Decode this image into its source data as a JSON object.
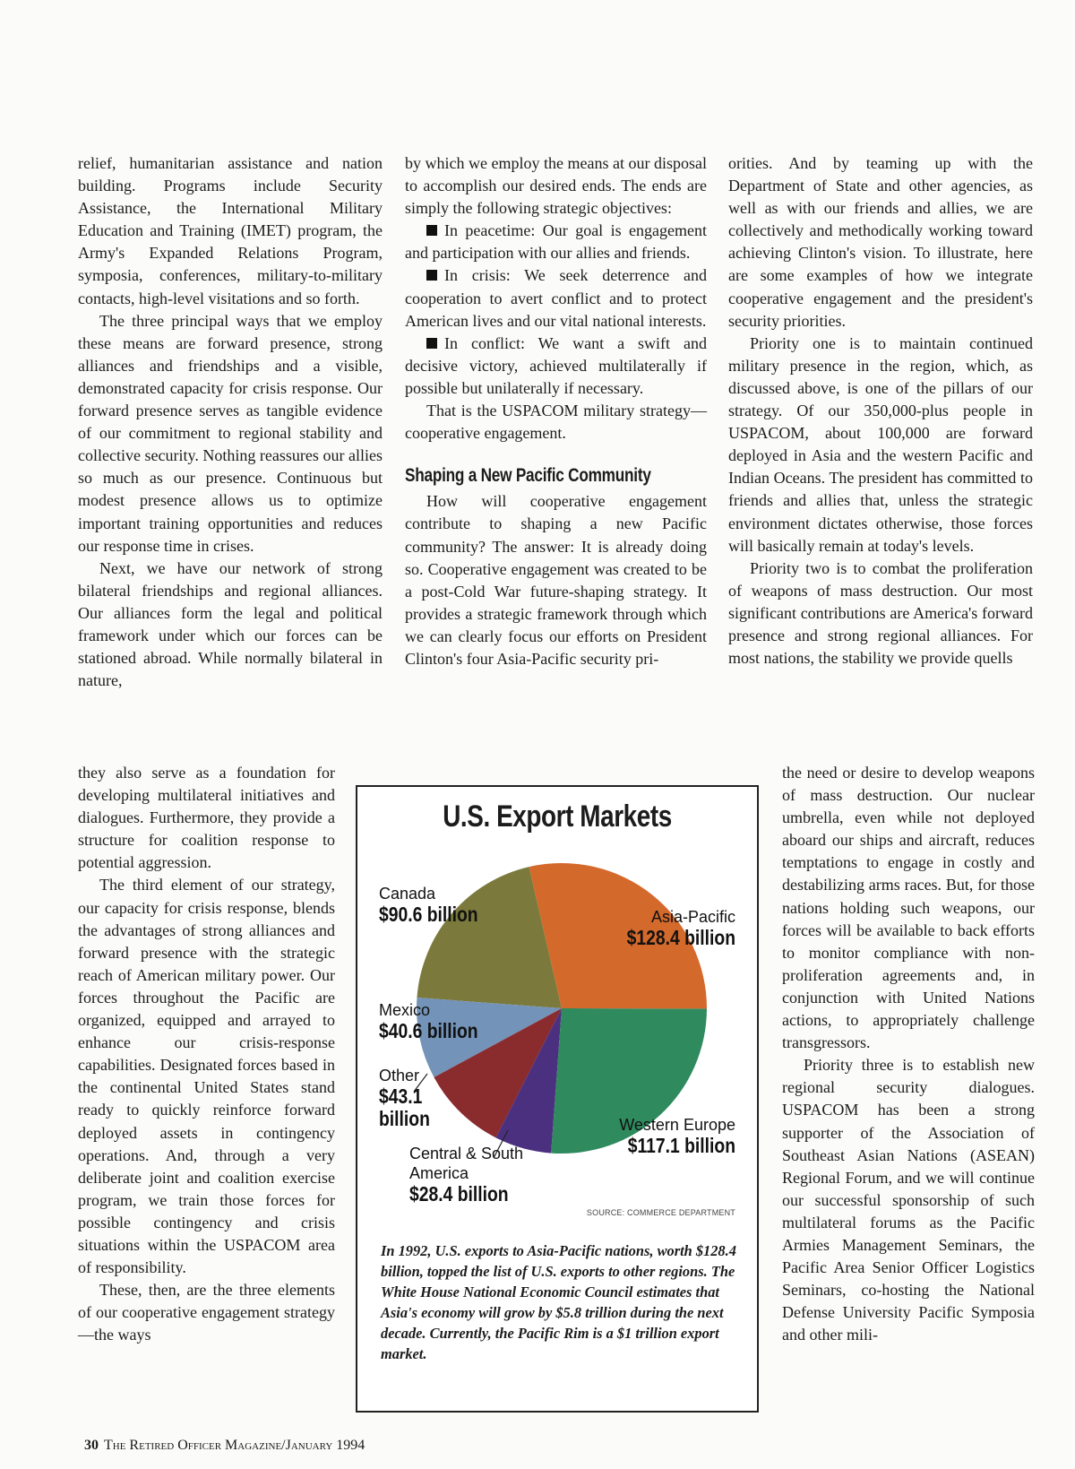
{
  "column_1": {
    "top": [
      "relief, humanitarian assistance and nation building. Programs include Security Assistance, the International Military Education and Training (IMET) program, the Army's Expanded Relations Program, symposia, conferences, military-to-military contacts, high-level visitations and so forth.",
      "The three principal ways that we employ these means are forward presence, strong alliances and friendships and a visible, demonstrated capacity for crisis response. Our forward presence serves as tangible evidence of our commitment to regional stability and collective security. Nothing reassures our allies so much as our presence. Continuous but modest presence allows us to optimize important training opportunities and reduces our response time in crises.",
      "Next, we have our network of strong bilateral friendships and regional alliances. Our alliances form the legal and political framework under which our forces can be stationed abroad. While normally bilateral in nature,"
    ],
    "wrap": [
      "they also serve as a foundation for developing multilateral initiatives and dialogues. Furthermore, they provide a structure for coalition response to potential aggression.",
      "The third element of our strategy, our capacity for crisis response, blends the advantages of strong alliances and forward presence with the strategic reach of American military power. Our forces throughout the Pacific are organized, equipped and arrayed to enhance our crisis-response capabilities. Designated forces based in the continental United States stand ready to quickly reinforce forward deployed assets in contingency operations. And, through a very deliberate joint and coalition exercise program, we train those forces for possible contingency and crisis situations within the USPACOM area of responsibility.",
      "These, then, are the three elements of our cooperative engagement strategy—the ways"
    ]
  },
  "column_2": {
    "intro": "by which we employ the means at our disposal to accomplish our desired ends. The ends are simply the following strategic objectives:",
    "bullets": [
      "In peacetime: Our goal is engagement and participation with our allies and friends.",
      "In crisis: We seek deterrence and cooperation to avert conflict and to protect American lives and our vital national interests.",
      "In conflict: We want a swift and decisive victory, achieved multilaterally if possible but unilaterally if necessary."
    ],
    "closing": "That is the USPACOM military strategy—cooperative engagement.",
    "heading": "Shaping a New Pacific Community",
    "body": "How will cooperative engagement contribute to shaping a new Pacific community? The answer: It is already doing so. Cooperative engagement was created to be a post-Cold War future-shaping strategy. It provides a strategic framework through which we can clearly focus our efforts on President Clinton's four Asia-Pacific security pri-"
  },
  "column_3": {
    "top": [
      "orities. And by teaming up with the Department of State and other agencies, as well as with our friends and allies, we are collectively and methodically working toward achieving Clinton's vision. To illustrate, here are some examples of how we integrate cooperative engagement and the president's security priorities.",
      "Priority one is to maintain continued military presence in the region, which, as discussed above, is one of the pillars of our strategy. Of our 350,000-plus people in USPACOM, about 100,000 are forward deployed in Asia and the western Pacific and Indian Oceans. The president has committed to friends and allies that, unless the strategic environment dictates otherwise, those forces will basically remain at today's levels.",
      "Priority two is to combat the proliferation of weapons of mass destruction. Our most significant contributions are America's forward presence and strong regional alliances. For most nations, the stability we provide quells"
    ],
    "wrap": [
      "the need or desire to develop weapons of mass destruction. Our nuclear umbrella, even while not deployed aboard our ships and aircraft, reduces temptations to engage in costly and destabilizing arms races. But, for those nations holding such weapons, our forces will be available to back efforts to monitor compliance with non-proliferation agreements and, in conjunction with United Nations actions, to appropriately challenge transgressors.",
      "Priority three is to establish new regional security dialogues. USPACOM has been a strong supporter of the Association of Southeast Asian Nations (ASEAN) Regional Forum, and we will continue our successful sponsorship of such multilateral forums as the Pacific Armies Management Seminars, the Pacific Area Senior Officer Logistics Seminars, co-hosting the National Defense University Pacific Symposia and other mili-"
    ]
  },
  "chart_data": {
    "type": "pie",
    "title": "U.S. Export Markets",
    "categories": [
      "Asia-Pacific",
      "Western Europe",
      "Central & South America",
      "Other",
      "Mexico",
      "Canada"
    ],
    "values": [
      128.4,
      117.1,
      28.4,
      43.1,
      40.6,
      90.6
    ],
    "value_labels": [
      "$128.4 billion",
      "$117.1 billion",
      "$28.4 billion",
      "$43.1 billion",
      "$40.6 billion",
      "$90.6 billion"
    ],
    "colors": [
      "#d4692c",
      "#2f8a5e",
      "#4b3080",
      "#8a2b2e",
      "#7393b8",
      "#7b7a3c"
    ],
    "source": "SOURCE: COMMERCE DEPARTMENT",
    "caption": "In 1992, U.S. exports to Asia-Pacific nations, worth $128.4 billion, topped the list of U.S. exports to other regions. The White House National Economic Council estimates that Asia's economy will grow by $5.8 trillion during the next decade. Currently, the Pacific Rim is a $1 trillion export market."
  },
  "footer": {
    "page_number": "30",
    "publication": "The Retired Officer Magazine/January 1994"
  }
}
